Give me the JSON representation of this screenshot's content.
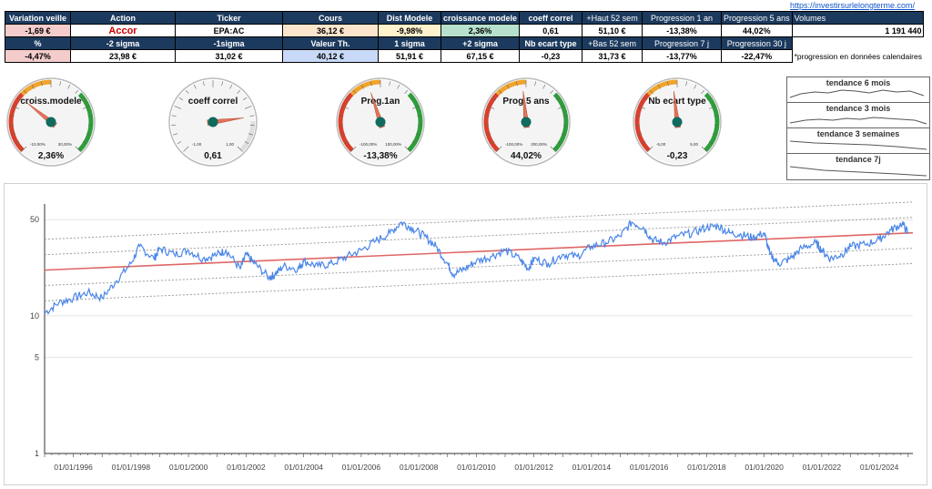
{
  "link": "https://investirsurlelongterme.com/",
  "table": {
    "row1_headers": [
      "Variation veille",
      "Action",
      "Ticker",
      "Cours",
      "Dist Modele",
      "croissance modele",
      "coeff correl",
      "+Haut 52 sem",
      "Progression 1 an",
      "Progression 5 ans",
      "Volumes"
    ],
    "row1_values": [
      "-1,69 €",
      "Accor",
      "EPA:AC",
      "36,12 €",
      "-9,98%",
      "2,36%",
      "0,61",
      "51,10 €",
      "-13,38%",
      "44,02%",
      "1 191 440"
    ],
    "row2_headers": [
      "%",
      "-2 sigma",
      "-1sigma",
      "Valeur Th.",
      "1 sigma",
      "+2 sigma",
      "Nb ecart type",
      "+Bas 52 sem",
      "Progression 7 j",
      "Progression 30 j"
    ],
    "row2_values": [
      "-4,47%",
      "23,98 €",
      "31,02 €",
      "40,12 €",
      "51,91 €",
      "67,15 €",
      "-0,23",
      "31,73 €",
      "-13,77%",
      "-22,47%"
    ],
    "note": "*progression en données calendaires"
  },
  "gauges": [
    {
      "title": "croiss.modele",
      "value_label": "2,36%",
      "min_label": "-10,00%",
      "max_label": "30,00%",
      "fraction": 0.31,
      "style": "color"
    },
    {
      "title": "coeff correl",
      "value_label": "0,61",
      "min_label": "-1,00",
      "max_label": "1,00",
      "fraction": 0.805,
      "style": "grey"
    },
    {
      "title": "Prog.1an",
      "value_label": "-13,38%",
      "min_label": "-100,00%",
      "max_label": "100,00%",
      "fraction": 0.433,
      "style": "color"
    },
    {
      "title": "Prog.5 ans",
      "value_label": "44,02%",
      "min_label": "-100,00%",
      "max_label": "200,00%",
      "fraction": 0.48,
      "style": "color"
    },
    {
      "title": "Nb ecart type",
      "value_label": "-0,23",
      "min_label": "-5,00",
      "max_label": "5,00",
      "fraction": 0.477,
      "style": "color"
    }
  ],
  "trends": [
    "tendance 6 mois",
    "tendance 3 mois",
    "tendance 3 semaines",
    "tendance 7j"
  ],
  "colors": {
    "header_bg": "#1c3a5e",
    "price_line": "#4a86e8",
    "regression": "#e06666",
    "band": "#9e9e9e"
  },
  "chart_data": {
    "type": "line",
    "yscale": "log",
    "yticks": [
      1,
      5,
      10,
      50
    ],
    "ytick_labels": [
      "1",
      "5",
      "10",
      "50"
    ],
    "ylim": [
      1,
      65
    ],
    "xlim": [
      "1995-01-01",
      "2025-03-01"
    ],
    "xtick_labels": [
      "01/01/1996",
      "01/01/1998",
      "01/01/2000",
      "01/01/2002",
      "01/01/2004",
      "01/01/2006",
      "01/01/2008",
      "01/01/2010",
      "01/01/2012",
      "01/01/2014",
      "01/01/2016",
      "01/01/2018",
      "01/01/2020",
      "01/01/2022",
      "01/01/2024"
    ],
    "xtick_years": [
      1996,
      1998,
      2000,
      2002,
      2004,
      2006,
      2008,
      2010,
      2012,
      2014,
      2016,
      2018,
      2020,
      2022,
      2024
    ],
    "series": [
      {
        "values_x": [
          1995.0,
          1995.5,
          1996.0,
          1996.5,
          1997.0,
          1997.5,
          1998.0,
          1998.3,
          1998.8,
          1999.0,
          1999.5,
          2000.0,
          2000.5,
          2001.0,
          2001.3,
          2001.8,
          2002.0,
          2002.3,
          2002.8,
          2003.0,
          2003.3,
          2003.8,
          2004.0,
          2004.5,
          2005.0,
          2005.5,
          2006.0,
          2006.5,
          2007.0,
          2007.4,
          2007.8,
          2008.2,
          2008.6,
          2009.0,
          2009.2,
          2009.6,
          2010.0,
          2010.5,
          2011.0,
          2011.5,
          2011.8,
          2012.0,
          2012.5,
          2013.0,
          2013.5,
          2014.0,
          2014.5,
          2015.0,
          2015.4,
          2015.8,
          2016.1,
          2016.5,
          2017.0,
          2017.5,
          2018.0,
          2018.4,
          2018.8,
          2019.2,
          2019.6,
          2020.0,
          2020.2,
          2020.5,
          2020.9,
          2021.3,
          2021.8,
          2022.0,
          2022.3,
          2022.7,
          2023.0,
          2023.5,
          2024.0,
          2024.4,
          2024.8,
          2025.0
        ],
        "values_y": [
          10.5,
          12.5,
          13.5,
          14.8,
          13.5,
          18,
          24,
          32,
          26,
          31,
          28,
          30,
          26,
          28,
          30,
          22,
          28,
          24,
          19,
          20,
          23,
          22,
          25,
          23,
          24,
          27,
          30,
          35,
          40,
          48,
          43,
          38,
          32,
          24,
          20,
          22,
          25,
          27,
          30,
          26,
          22,
          26,
          24,
          28,
          27,
          32,
          34,
          38,
          48,
          44,
          36,
          34,
          38,
          40,
          44,
          45,
          40,
          39,
          37,
          40,
          28,
          24,
          26,
          31,
          34,
          30,
          26,
          28,
          32,
          33,
          36,
          42,
          47,
          40
        ]
      }
    ],
    "regression": {
      "start_y": 21.5,
      "end_y": 40.12
    },
    "bands_sigma_factors": [
      0.598,
      0.773,
      1.294,
      1.674
    ]
  }
}
